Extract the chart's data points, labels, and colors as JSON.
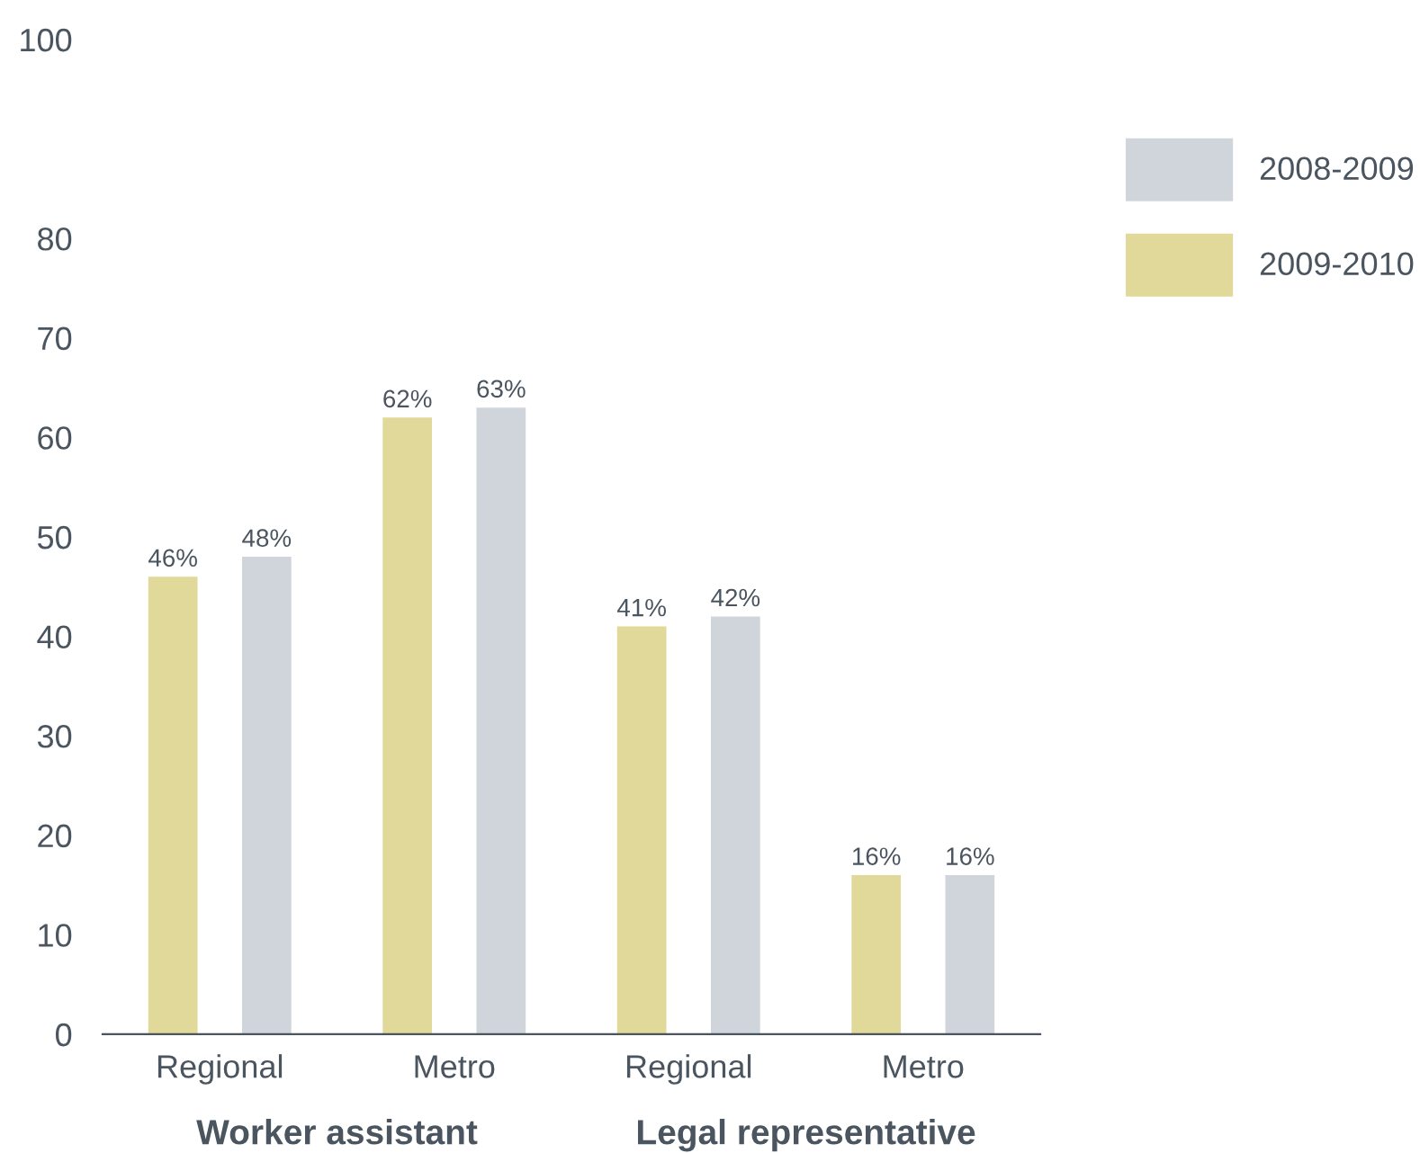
{
  "chart_data": {
    "type": "bar",
    "categories": [
      "Regional",
      "Metro",
      "Regional",
      "Metro"
    ],
    "series": [
      {
        "name": "2009-2010",
        "color": "#e0d99a",
        "values": [
          46,
          62,
          41,
          16
        ],
        "value_labels": [
          "46%",
          "62%",
          "41%",
          "16%"
        ]
      },
      {
        "name": "2008-2009",
        "color": "#d0d5db",
        "values": [
          48,
          63,
          42,
          16
        ],
        "value_labels": [
          "48%",
          "63%",
          "42%",
          "16%"
        ]
      }
    ],
    "ylim": [
      0,
      100
    ],
    "yticks": [
      0,
      10,
      20,
      30,
      40,
      50,
      60,
      70,
      80,
      100
    ],
    "annotations": [
      "Worker assistant",
      "Legal representative"
    ],
    "legend": "top right",
    "grid": false
  }
}
